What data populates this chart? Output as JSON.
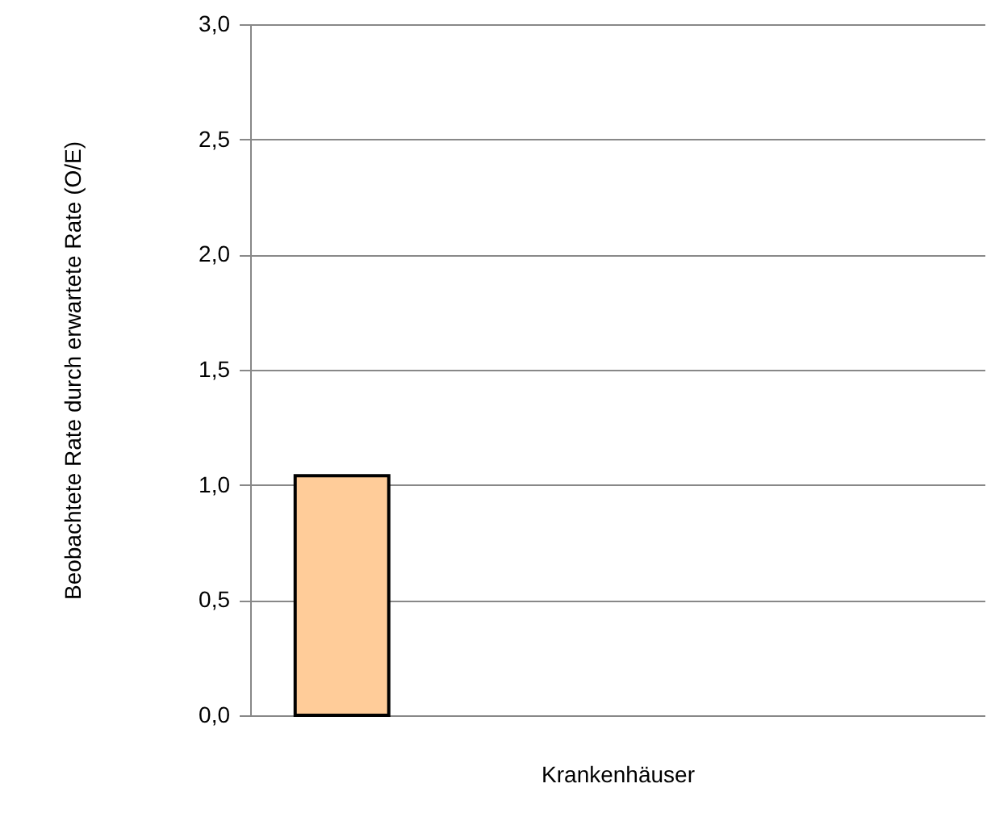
{
  "chart_data": {
    "type": "bar",
    "xlabel": "Krankenhäuser",
    "ylabel": "Beobachtete Rate durch erwartete Rate (O/E)",
    "categories": [
      null,
      null,
      null,
      null
    ],
    "values": [
      1.04,
      null,
      null,
      null
    ],
    "color": "#ffcc99",
    "ylim": [
      0,
      3
    ],
    "yticks": [
      {
        "value": 0,
        "label": "0,0"
      },
      {
        "value": 0.5,
        "label": "0,5"
      },
      {
        "value": 1,
        "label": "1,0"
      },
      {
        "value": 1.5,
        "label": "1,5"
      },
      {
        "value": 2,
        "label": "2,0"
      },
      {
        "value": 2.5,
        "label": "2,5"
      },
      {
        "value": 3,
        "label": "3,0"
      }
    ],
    "grid": "y",
    "tick_labels": "y"
  }
}
